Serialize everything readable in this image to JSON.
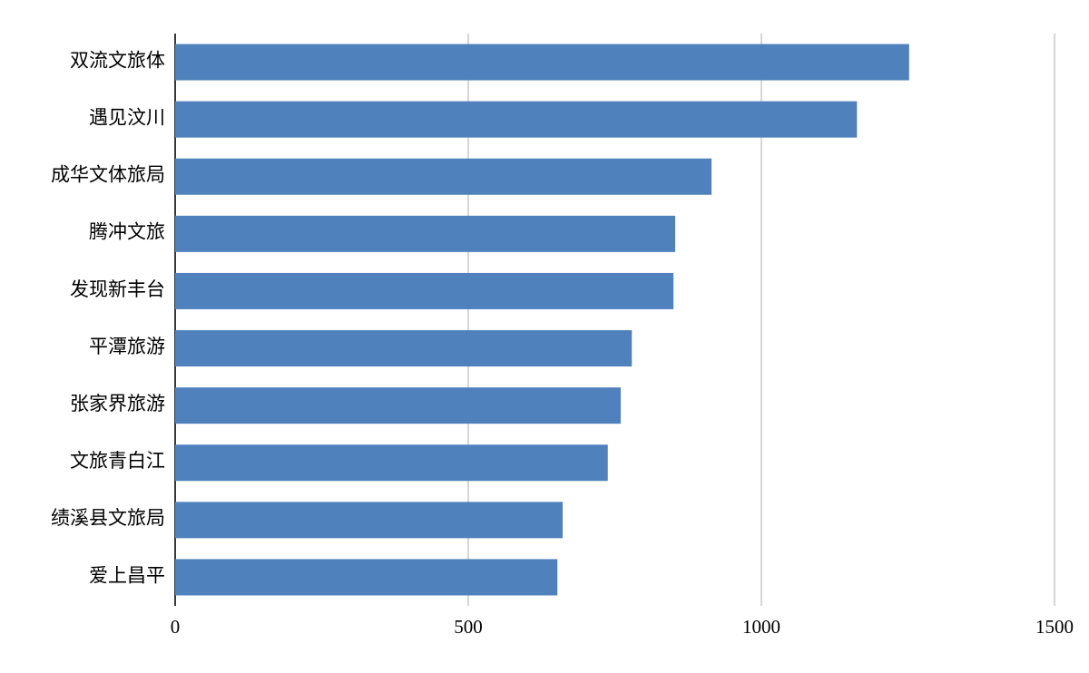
{
  "chart_data": {
    "type": "bar",
    "orientation": "horizontal",
    "categories": [
      "双流文旅体",
      "遇见汶川",
      "成华文体旅局",
      "腾冲文旅",
      "发现新丰台",
      "平潭旅游",
      "张家界旅游",
      "文旅青白江",
      "绩溪县文旅局",
      "爱上昌平"
    ],
    "values": [
      1252,
      1163,
      915,
      853,
      850,
      779,
      760,
      738,
      661,
      652
    ],
    "color": "#4f81bd",
    "xlim": [
      0,
      1500
    ],
    "xticks": [
      0,
      500,
      1000,
      1500
    ],
    "grid": true
  }
}
